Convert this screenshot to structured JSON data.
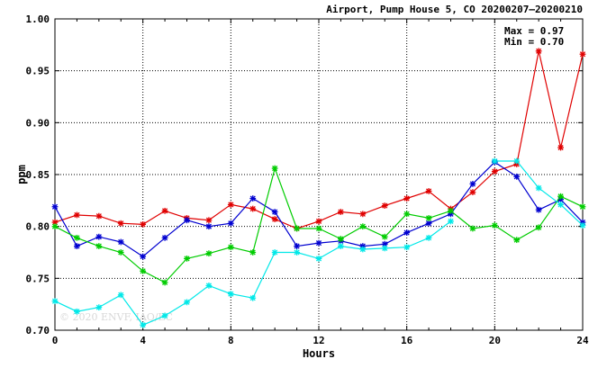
{
  "chart_data": {
    "type": "line",
    "title": "Airport, Pump House 5, CO 20200207–20200210",
    "xlabel": "Hours",
    "ylabel": "ppm",
    "xlim": [
      0,
      24
    ],
    "ylim": [
      0.7,
      1.0
    ],
    "xticks": [
      0,
      4,
      8,
      12,
      16,
      20,
      24
    ],
    "xtick_labels": [
      "0",
      "4",
      "8",
      "12",
      "16",
      "20",
      "24"
    ],
    "yticks": [
      0.7,
      0.75,
      0.8,
      0.85,
      0.9,
      0.95,
      1.0
    ],
    "ytick_labels": [
      "0.70",
      "0.75",
      "0.80",
      "0.85",
      "0.90",
      "0.95",
      "1.00"
    ],
    "grid": true,
    "grid_style": "dotted",
    "annotations": {
      "max": "Max = 0.97",
      "min": "Min = 0.70"
    },
    "watermark": "© 2020 ENVF, IAQ/EC",
    "x": [
      0,
      1,
      2,
      3,
      4,
      5,
      6,
      7,
      8,
      9,
      10,
      11,
      12,
      13,
      14,
      15,
      16,
      17,
      18,
      19,
      20,
      21,
      22,
      23,
      24
    ],
    "series": [
      {
        "color": "#e00000",
        "marker": "asterisk",
        "values": [
          0.804,
          0.811,
          0.81,
          0.803,
          0.802,
          0.815,
          0.808,
          0.806,
          0.821,
          0.817,
          0.807,
          0.798,
          0.805,
          0.814,
          0.812,
          0.82,
          0.827,
          0.834,
          0.817,
          0.833,
          0.853,
          0.86,
          0.969,
          0.876,
          0.966
        ]
      },
      {
        "color": "#0000d0",
        "marker": "asterisk",
        "values": [
          0.819,
          0.781,
          0.79,
          0.785,
          0.771,
          0.789,
          0.806,
          0.8,
          0.803,
          0.827,
          0.814,
          0.781,
          0.784,
          0.786,
          0.781,
          0.783,
          0.794,
          0.803,
          0.812,
          0.841,
          0.862,
          0.848,
          0.816,
          0.826,
          0.804
        ]
      },
      {
        "color": "#00cc00",
        "marker": "asterisk",
        "values": [
          0.8,
          0.789,
          0.781,
          0.775,
          0.757,
          0.746,
          0.769,
          0.774,
          0.78,
          0.775,
          0.856,
          0.798,
          0.798,
          0.788,
          0.8,
          0.79,
          0.812,
          0.808,
          0.815,
          0.798,
          0.801,
          0.787,
          0.799,
          0.829,
          0.819
        ]
      },
      {
        "color": "#00e8e8",
        "marker": "asterisk",
        "values": [
          0.728,
          0.718,
          0.722,
          0.734,
          0.705,
          0.714,
          0.727,
          0.743,
          0.735,
          0.731,
          0.775,
          0.775,
          0.769,
          0.781,
          0.778,
          0.779,
          0.78,
          0.789,
          0.805,
          null,
          0.863,
          0.863,
          0.837,
          0.821,
          0.801
        ]
      }
    ]
  }
}
